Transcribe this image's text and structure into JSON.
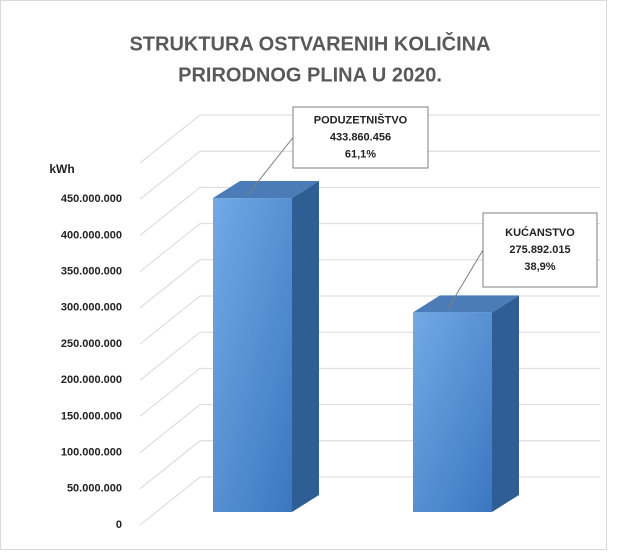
{
  "chart_data": {
    "type": "bar3d",
    "title": [
      "STRUKTURA OSTVARENIH KOLIČINA",
      "PRIRODNOG PLINA U 2020."
    ],
    "y_label": "kWh",
    "categories": [
      "PODUZETNIŠTVO",
      "KUĆANSTVO"
    ],
    "values": [
      433860456,
      275892015
    ],
    "value_labels": [
      "433.860.456",
      "275.892.015"
    ],
    "shares": [
      61.1,
      38.9
    ],
    "share_labels": [
      "61,1%",
      "38,9%"
    ],
    "color": "#4f8fd6",
    "ylim": [
      0,
      500000000
    ],
    "yticks": [
      {
        "value": 0,
        "label": "0"
      },
      {
        "value": 50000000,
        "label": "50.000.000"
      },
      {
        "value": 100000000,
        "label": "100.000.000"
      },
      {
        "value": 150000000,
        "label": "150.000.000"
      },
      {
        "value": 200000000,
        "label": "200.000.000"
      },
      {
        "value": 250000000,
        "label": "250.000.000"
      },
      {
        "value": 300000000,
        "label": "300.000.000"
      },
      {
        "value": 350000000,
        "label": "350.000.000"
      },
      {
        "value": 400000000,
        "label": "400.000.000"
      },
      {
        "value": 450000000,
        "label": "450.000.000"
      }
    ],
    "grid": true
  }
}
